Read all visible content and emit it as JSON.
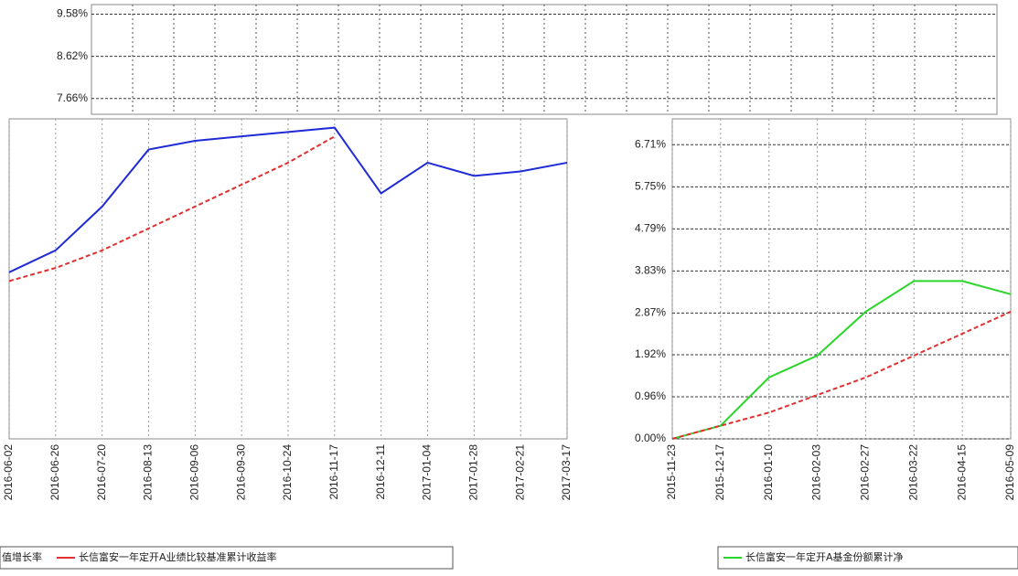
{
  "chart_data": [
    {
      "type": "frame",
      "ylim": [
        7.3,
        9.8
      ],
      "yticks": [
        {
          "value": 9.58,
          "label": "9.58%"
        },
        {
          "value": 8.62,
          "label": "8.62%"
        },
        {
          "value": 7.66,
          "label": "7.66%"
        }
      ]
    },
    {
      "type": "line",
      "x": [
        "2016-06-02",
        "2016-06-26",
        "2016-07-20",
        "2016-08-13",
        "2016-09-06",
        "2016-09-30",
        "2016-10-24",
        "2016-11-17",
        "2016-12-11",
        "2017-01-04",
        "2017-01-28",
        "2017-02-21",
        "2017-03-17"
      ],
      "ylim": [
        0,
        7.3
      ],
      "series": [
        {
          "name": "值增长率",
          "color": "#1f2bd6",
          "values": [
            3.8,
            4.3,
            5.3,
            6.6,
            6.8,
            6.9,
            7.0,
            7.1,
            5.6,
            6.3,
            6.0,
            6.1,
            6.3
          ]
        },
        {
          "name": "长信富安一年定开A业绩比较基准累计收益率",
          "color": "#e03030",
          "values": [
            3.6,
            3.9,
            4.3,
            4.8,
            5.3,
            5.8,
            6.3,
            6.9,
            null,
            null,
            null,
            null,
            null
          ]
        }
      ]
    },
    {
      "type": "line",
      "x": [
        "2015-11-23",
        "2015-12-17",
        "2016-01-10",
        "2016-02-03",
        "2016-02-27",
        "2016-03-22",
        "2016-04-15",
        "2016-05-09"
      ],
      "ylim": [
        0,
        7.3
      ],
      "yticks": [
        {
          "value": 6.71,
          "label": "6.71%"
        },
        {
          "value": 5.75,
          "label": "5.75%"
        },
        {
          "value": 4.79,
          "label": "4.79%"
        },
        {
          "value": 3.83,
          "label": "3.83%"
        },
        {
          "value": 2.87,
          "label": "2.87%"
        },
        {
          "value": 1.92,
          "label": "1.92%"
        },
        {
          "value": 0.96,
          "label": "0.96%"
        },
        {
          "value": 0.0,
          "label": "0.00%"
        }
      ],
      "series": [
        {
          "name": "长信富安一年定开A基金份额累计净",
          "color": "#2bd62b",
          "values": [
            0.0,
            0.3,
            1.4,
            1.9,
            2.9,
            3.6,
            3.6,
            3.3
          ]
        },
        {
          "color": "#e03030",
          "values": [
            0.0,
            0.3,
            0.6,
            1.0,
            1.4,
            1.9,
            2.4,
            2.9
          ]
        }
      ]
    }
  ]
}
